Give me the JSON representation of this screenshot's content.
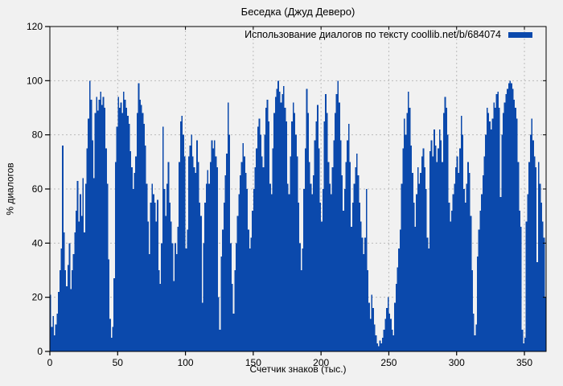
{
  "title": "Беседка (Джуд Деверо)",
  "legend": {
    "label": "Использование диалогов по тексту coollib.net/b/684074",
    "swatch_color": "#0b49ac"
  },
  "axes": {
    "x_label": "Счетчик знаков (тыс.)",
    "y_label": "% диалогов"
  },
  "colors": {
    "background": "#f1f1f1",
    "bars": "#0b49ac",
    "grid": "#bcbcbc",
    "border": "#000000",
    "text": "#000000"
  },
  "chart_data": {
    "type": "bar",
    "style": "impulses",
    "title": "Беседка (Джуд Деверо)",
    "xlabel": "Счетчик знаков (тыс.)",
    "ylabel": "% диалогов",
    "legend_entry": "Использование диалогов по тексту coollib.net/b/684074",
    "legend_position": "top-right",
    "grid": true,
    "xlim": [
      0,
      366
    ],
    "ylim": [
      0,
      120
    ],
    "xticks": [
      0,
      50,
      100,
      150,
      200,
      250,
      300,
      350
    ],
    "yticks": [
      0,
      20,
      40,
      60,
      80,
      100,
      120
    ],
    "x_start": 0,
    "x_step": 1,
    "bar_color": "#0b49ac",
    "values": [
      21,
      9,
      13,
      6,
      10,
      14,
      22,
      30,
      38,
      76,
      44,
      30,
      24,
      32,
      40,
      23,
      30,
      36,
      44,
      52,
      63,
      48,
      58,
      50,
      64,
      44,
      62,
      75,
      86,
      100,
      93,
      78,
      64,
      88,
      94,
      89,
      93,
      96,
      91,
      94,
      90,
      75,
      62,
      34,
      12,
      5,
      9,
      27,
      70,
      83,
      94,
      90,
      92,
      88,
      96,
      93,
      90,
      87,
      84,
      74,
      68,
      60,
      66,
      72,
      88,
      99,
      93,
      91,
      88,
      84,
      76,
      62,
      48,
      36,
      55,
      62,
      58,
      55,
      48,
      56,
      30,
      25,
      40,
      83,
      60,
      50,
      62,
      70,
      55,
      48,
      40,
      26,
      40,
      36,
      46,
      70,
      85,
      87,
      80,
      72,
      38,
      45,
      72,
      76,
      80,
      72,
      68,
      66,
      78,
      70,
      55,
      50,
      18,
      40,
      55,
      62,
      67,
      62,
      70,
      78,
      75,
      78,
      72,
      68,
      20,
      8,
      35,
      45,
      55,
      65,
      73,
      92,
      80,
      40,
      25,
      14,
      30,
      40,
      50,
      58,
      65,
      70,
      77,
      72,
      66,
      60,
      45,
      38,
      42,
      52,
      60,
      68,
      75,
      83,
      86,
      80,
      72,
      68,
      80,
      90,
      93,
      85,
      62,
      58,
      75,
      88,
      94,
      97,
      100,
      96,
      92,
      95,
      98,
      90,
      85,
      62,
      58,
      72,
      85,
      92,
      88,
      80,
      72,
      55,
      40,
      30,
      38,
      60,
      75,
      97,
      88,
      70,
      62,
      58,
      65,
      78,
      85,
      91,
      75,
      55,
      48,
      60,
      85,
      95,
      88,
      70,
      62,
      58,
      68,
      78,
      88,
      95,
      100,
      92,
      78,
      65,
      52,
      60,
      70,
      78,
      84,
      70,
      46,
      55,
      62,
      68,
      73,
      65,
      55,
      48,
      42,
      36,
      42,
      60,
      30,
      18,
      12,
      21,
      16,
      10,
      6,
      3,
      2,
      4,
      3,
      5,
      8,
      12,
      16,
      20,
      14,
      12,
      8,
      6,
      18,
      25,
      31,
      38,
      45,
      62,
      75,
      86,
      80,
      88,
      96,
      90,
      76,
      66,
      55,
      46,
      58,
      68,
      62,
      66,
      72,
      75,
      68,
      60,
      42,
      38,
      74,
      78,
      72,
      82,
      76,
      70,
      75,
      82,
      78,
      70,
      88,
      94,
      90,
      80,
      55,
      48,
      52,
      58,
      62,
      68,
      72,
      66,
      75,
      87,
      80,
      60,
      55,
      62,
      70,
      66,
      50,
      30,
      14,
      6,
      10,
      35,
      45,
      52,
      58,
      65,
      72,
      80,
      90,
      88,
      85,
      82,
      86,
      92,
      90,
      95,
      96,
      90,
      57,
      80,
      88,
      92,
      95,
      97,
      99,
      100,
      99,
      97,
      93,
      90,
      86,
      70,
      52,
      46,
      8,
      3,
      5,
      48,
      58,
      70,
      80,
      86,
      78,
      72,
      68,
      33,
      70,
      62,
      55,
      48,
      42,
      20
    ]
  }
}
